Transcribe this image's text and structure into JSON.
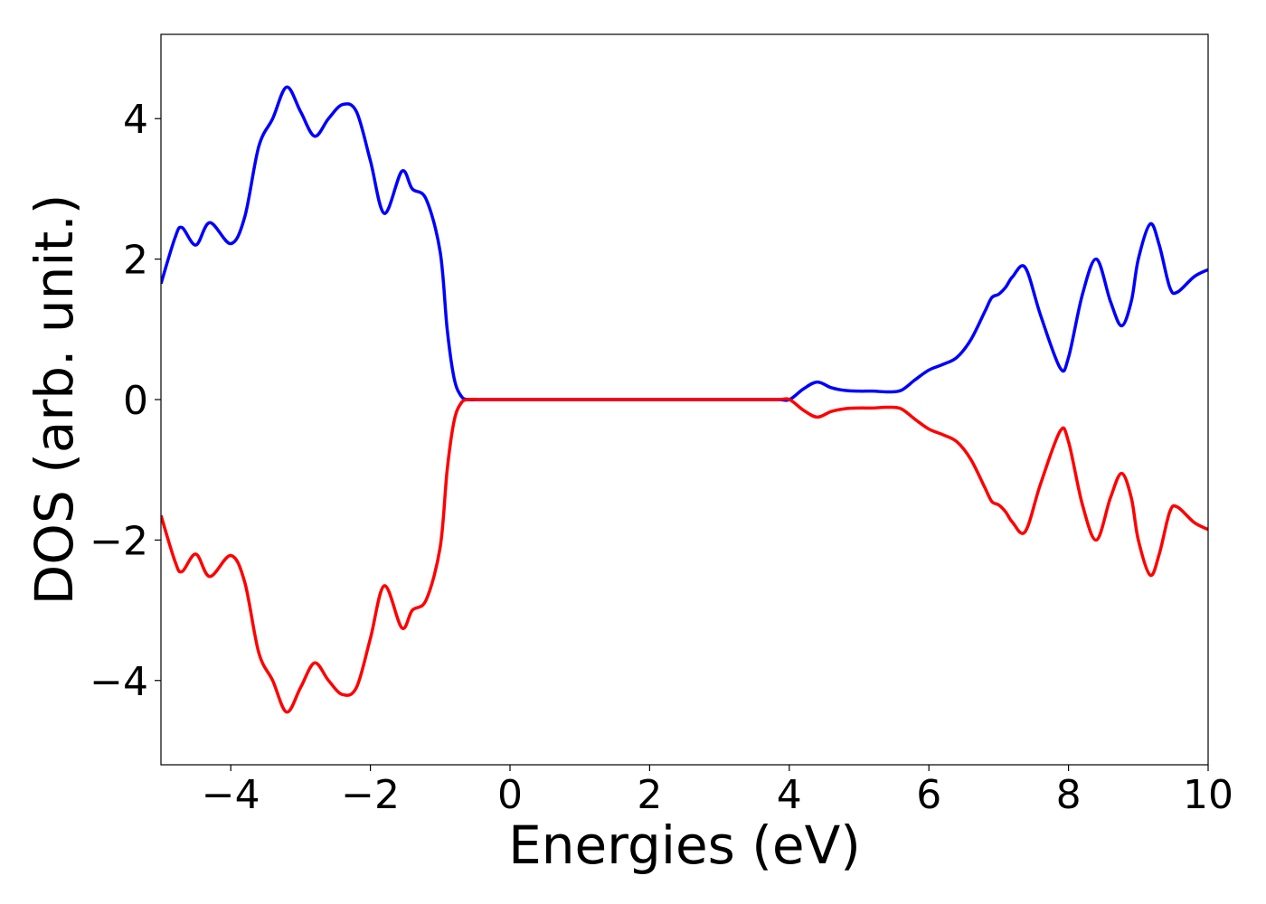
{
  "chart_data": {
    "type": "line",
    "x_label": "Energies (eV)",
    "y_label": "DOS (arb. unit.)",
    "x": [
      -5,
      -4.8,
      -4.7,
      -4.5,
      -4.3,
      -4.0,
      -3.8,
      -3.6,
      -3.4,
      -3.2,
      -3.0,
      -2.8,
      -2.6,
      -2.4,
      -2.2,
      -2.0,
      -1.8,
      -1.55,
      -1.4,
      -1.2,
      -1.0,
      -0.9,
      -0.8,
      -0.7,
      -0.6,
      -0.4,
      0,
      1,
      2,
      3,
      3.8,
      4.0,
      4.2,
      4.4,
      4.6,
      4.8,
      5.0,
      5.2,
      5.4,
      5.6,
      5.8,
      6.0,
      6.2,
      6.4,
      6.6,
      6.8,
      6.9,
      7.0,
      7.1,
      7.2,
      7.38,
      7.6,
      7.88,
      8.0,
      8.2,
      8.4,
      8.6,
      8.76,
      8.9,
      9.0,
      9.17,
      9.3,
      9.45,
      9.56,
      9.8,
      10
    ],
    "series": [
      {
        "color": "#0000ff",
        "values": [
          1.65,
          2.3,
          2.45,
          2.2,
          2.52,
          2.22,
          2.6,
          3.6,
          4.0,
          4.45,
          4.1,
          3.75,
          4.0,
          4.2,
          4.1,
          3.4,
          2.65,
          3.25,
          3.0,
          2.85,
          2.1,
          1.0,
          0.3,
          0.05,
          0.0,
          0.0,
          0.0,
          0.0,
          0.0,
          0.0,
          0.0,
          0.0,
          0.15,
          0.25,
          0.17,
          0.13,
          0.12,
          0.12,
          0.11,
          0.13,
          0.28,
          0.42,
          0.5,
          0.6,
          0.85,
          1.25,
          1.45,
          1.5,
          1.6,
          1.75,
          1.88,
          1.2,
          0.45,
          0.6,
          1.5,
          2.0,
          1.4,
          1.05,
          1.4,
          2.0,
          2.5,
          2.2,
          1.6,
          1.53,
          1.75,
          1.85
        ]
      },
      {
        "color": "#ff0000",
        "values": [
          -1.65,
          -2.3,
          -2.45,
          -2.2,
          -2.52,
          -2.22,
          -2.6,
          -3.6,
          -4.0,
          -4.45,
          -4.1,
          -3.75,
          -4.0,
          -4.2,
          -4.1,
          -3.4,
          -2.65,
          -3.25,
          -3.0,
          -2.85,
          -2.1,
          -1.0,
          -0.3,
          -0.05,
          0.0,
          0.0,
          0.0,
          0.0,
          0.0,
          0.0,
          0.0,
          0.0,
          -0.15,
          -0.25,
          -0.17,
          -0.13,
          -0.12,
          -0.12,
          -0.11,
          -0.13,
          -0.28,
          -0.42,
          -0.5,
          -0.6,
          -0.85,
          -1.25,
          -1.45,
          -1.5,
          -1.6,
          -1.75,
          -1.88,
          -1.2,
          -0.45,
          -0.6,
          -1.5,
          -2.0,
          -1.4,
          -1.05,
          -1.4,
          -2.0,
          -2.5,
          -2.2,
          -1.6,
          -1.53,
          -1.75,
          -1.85
        ]
      }
    ],
    "xlim": [
      -5,
      10
    ],
    "xticks": [
      {
        "value": -4,
        "label": "−4"
      },
      {
        "value": -2,
        "label": "−2"
      },
      0,
      2,
      4,
      6,
      8,
      10
    ],
    "ylim": [
      -5.2,
      5.2
    ],
    "yticks": [
      {
        "value": -4,
        "label": "−4"
      },
      {
        "value": -2,
        "label": "−2"
      },
      0,
      2,
      4
    ],
    "grid": false
  }
}
